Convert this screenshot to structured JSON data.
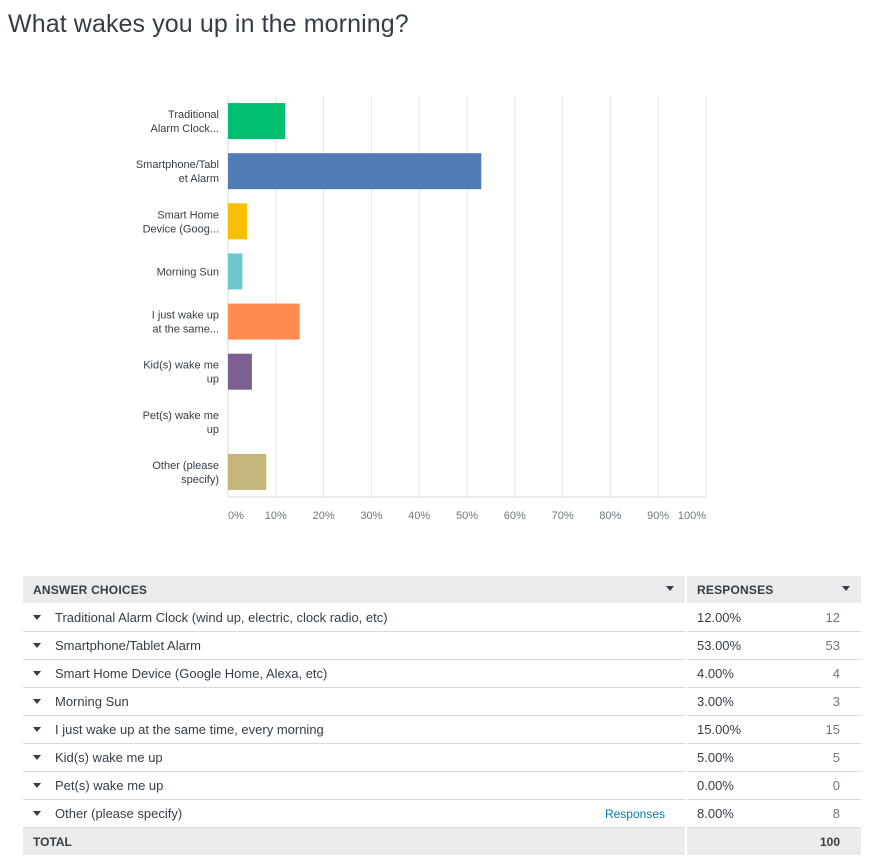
{
  "question": {
    "title": "What wakes you up in the morning?"
  },
  "chart_data": {
    "type": "bar",
    "orientation": "horizontal",
    "categories": [
      [
        "Traditional",
        "Alarm Clock..."
      ],
      [
        "Smartphone/Tabl",
        "et Alarm"
      ],
      [
        "Smart Home",
        "Device (Goog..."
      ],
      [
        "Morning Sun"
      ],
      [
        "I just wake up",
        "at the same..."
      ],
      [
        "Kid(s) wake me",
        "up"
      ],
      [
        "Pet(s) wake me",
        "up"
      ],
      [
        "Other (please",
        "specify)"
      ]
    ],
    "values": [
      12,
      53,
      4,
      3,
      15,
      5,
      0,
      8
    ],
    "colors": [
      "#00bf6f",
      "#507cb6",
      "#f9be00",
      "#6bc8cd",
      "#ff8b4f",
      "#7d5e90",
      "#d25f90",
      "#c4b67b"
    ],
    "xlim": [
      0,
      100
    ],
    "xticks": [
      "0%",
      "10%",
      "20%",
      "30%",
      "40%",
      "50%",
      "60%",
      "70%",
      "80%",
      "90%",
      "100%"
    ],
    "grid": true,
    "xlabel": "",
    "ylabel": ""
  },
  "table": {
    "header_answer": "ANSWER CHOICES",
    "header_responses": "RESPONSES",
    "rows": [
      {
        "label": "Traditional Alarm Clock (wind up, electric, clock radio, etc)",
        "percent": "12.00%",
        "count": "12"
      },
      {
        "label": "Smartphone/Tablet Alarm",
        "percent": "53.00%",
        "count": "53"
      },
      {
        "label": "Smart Home Device (Google Home, Alexa, etc)",
        "percent": "4.00%",
        "count": "4"
      },
      {
        "label": "Morning Sun",
        "percent": "3.00%",
        "count": "3"
      },
      {
        "label": "I just wake up at the same time, every morning",
        "percent": "15.00%",
        "count": "15"
      },
      {
        "label": "Kid(s) wake me up",
        "percent": "5.00%",
        "count": "5"
      },
      {
        "label": "Pet(s) wake me up",
        "percent": "0.00%",
        "count": "0"
      },
      {
        "label": "Other (please specify)",
        "percent": "8.00%",
        "count": "8",
        "link": "Responses"
      }
    ],
    "total_label": "TOTAL",
    "total_count": "100"
  }
}
